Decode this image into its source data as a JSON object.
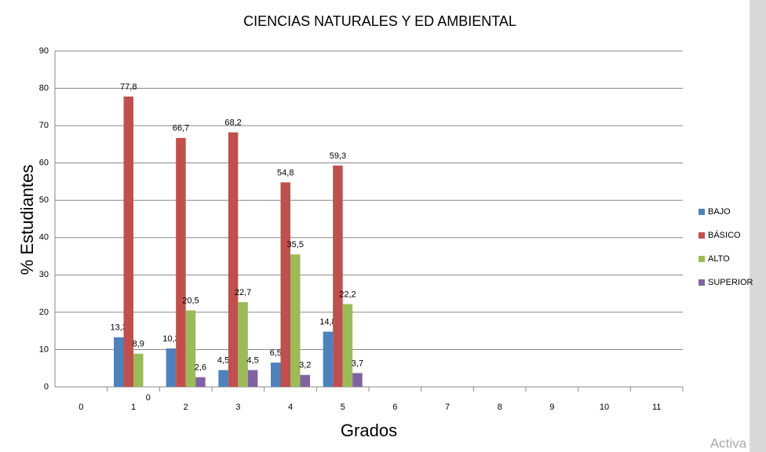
{
  "chart_data": {
    "type": "bar",
    "title": "CIENCIAS NATURALES Y ED AMBIENTAL",
    "x_label": "Grados",
    "y_label": "% Estudiantes",
    "watermark": "Activa",
    "categories": [
      "0",
      "1",
      "2",
      "3",
      "4",
      "5",
      "6",
      "7",
      "8",
      "9",
      "10",
      "11"
    ],
    "series": [
      {
        "name": "BAJO",
        "color": "#4f81bd",
        "values": [
          null,
          13.3,
          10.3,
          4.5,
          6.5,
          14.8,
          null,
          null,
          null,
          null,
          null,
          null
        ],
        "value_labels": [
          null,
          "13,3",
          "10,3",
          "4,5",
          "6,5",
          "14,8",
          null,
          null,
          null,
          null,
          null,
          null
        ]
      },
      {
        "name": "BÁSICO",
        "color": "#c0504d",
        "values": [
          null,
          77.8,
          66.7,
          68.2,
          54.8,
          59.3,
          null,
          null,
          null,
          null,
          null,
          null
        ],
        "value_labels": [
          null,
          "77,8",
          "66,7",
          "68,2",
          "54,8",
          "59,3",
          null,
          null,
          null,
          null,
          null,
          null
        ]
      },
      {
        "name": "ALTO",
        "color": "#9bbb59",
        "values": [
          null,
          8.9,
          20.5,
          22.7,
          35.5,
          22.2,
          null,
          null,
          null,
          null,
          null,
          null
        ],
        "value_labels": [
          null,
          "8,9",
          "20,5",
          "22,7",
          "35,5",
          "22,2",
          null,
          null,
          null,
          null,
          null,
          null
        ]
      },
      {
        "name": "SUPERIOR",
        "color": "#8064a2",
        "values": [
          null,
          0,
          2.6,
          4.5,
          3.2,
          3.7,
          null,
          null,
          null,
          null,
          null,
          null
        ],
        "value_labels": [
          null,
          "0",
          "2,6",
          "4,5",
          "3,2",
          "3,7",
          null,
          null,
          null,
          null,
          null,
          null
        ]
      }
    ],
    "ylim": [
      0,
      90
    ],
    "yticks": [
      0,
      10,
      20,
      30,
      40,
      50,
      60,
      70,
      80,
      90
    ],
    "grid": true,
    "legend": "right"
  }
}
